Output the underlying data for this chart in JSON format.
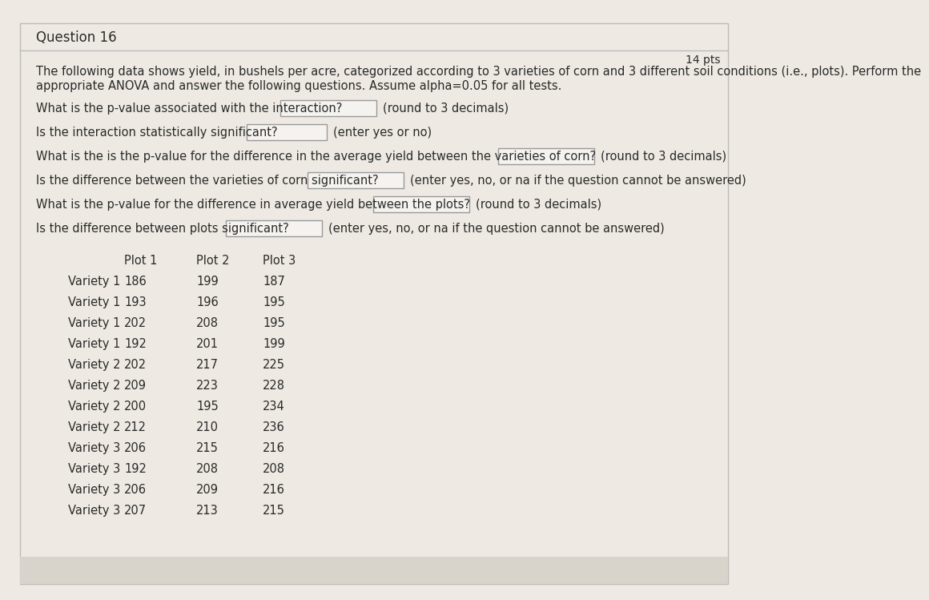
{
  "title": "Question 16",
  "pts": "14 pts",
  "bg_color": "#eeeae3",
  "header_bg": "#d8d4cc",
  "intro_line1": "The following data shows yield, in bushels per acre, categorized according to 3 varieties of corn and 3 different soil conditions (i.e., plots). Perform the",
  "intro_line2": "appropriate ANOVA and answer the following questions. Assume alpha=0.05 for all tests.",
  "q1_text": "What is the p-value associated with the interaction?",
  "q1_suffix": "(round to 3 decimals)",
  "q2_text": "Is the interaction statistically significant?",
  "q2_suffix": "(enter yes or no)",
  "q3_text": "What is the is the p-value for the difference in the average yield between the varieties of corn?",
  "q3_suffix": "(round to 3 decimals)",
  "q4_text": "Is the difference between the varieties of corn significant?",
  "q4_suffix": "(enter yes, no, or na if the question cannot be answered)",
  "q5_text": "What is the p-value for the difference in average yield between the plots?",
  "q5_suffix": "(round to 3 decimals)",
  "q6_text": "Is the difference between plots significant?",
  "q6_suffix": "(enter yes, no, or na if the question cannot be answered)",
  "col_headers": [
    "",
    "Plot 1",
    "Plot 2",
    "Plot 3"
  ],
  "table_rows": [
    [
      "Variety 1",
      "186",
      "199",
      "187"
    ],
    [
      "Variety 1",
      "193",
      "196",
      "195"
    ],
    [
      "Variety 1",
      "202",
      "208",
      "195"
    ],
    [
      "Variety 1",
      "192",
      "201",
      "199"
    ],
    [
      "Variety 2",
      "202",
      "217",
      "225"
    ],
    [
      "Variety 2",
      "209",
      "223",
      "228"
    ],
    [
      "Variety 2",
      "200",
      "195",
      "234"
    ],
    [
      "Variety 2",
      "212",
      "210",
      "236"
    ],
    [
      "Variety 3",
      "206",
      "215",
      "216"
    ],
    [
      "Variety 3",
      "192",
      "208",
      "208"
    ],
    [
      "Variety 3",
      "206",
      "209",
      "216"
    ],
    [
      "Variety 3",
      "207",
      "213",
      "215"
    ]
  ],
  "text_color": "#2a2a2a",
  "box_color": "#f5f3ef",
  "box_edge_color": "#999999",
  "line_color": "#cccccc",
  "font_size": 10.5,
  "font_size_title": 12,
  "font_size_pts": 10
}
